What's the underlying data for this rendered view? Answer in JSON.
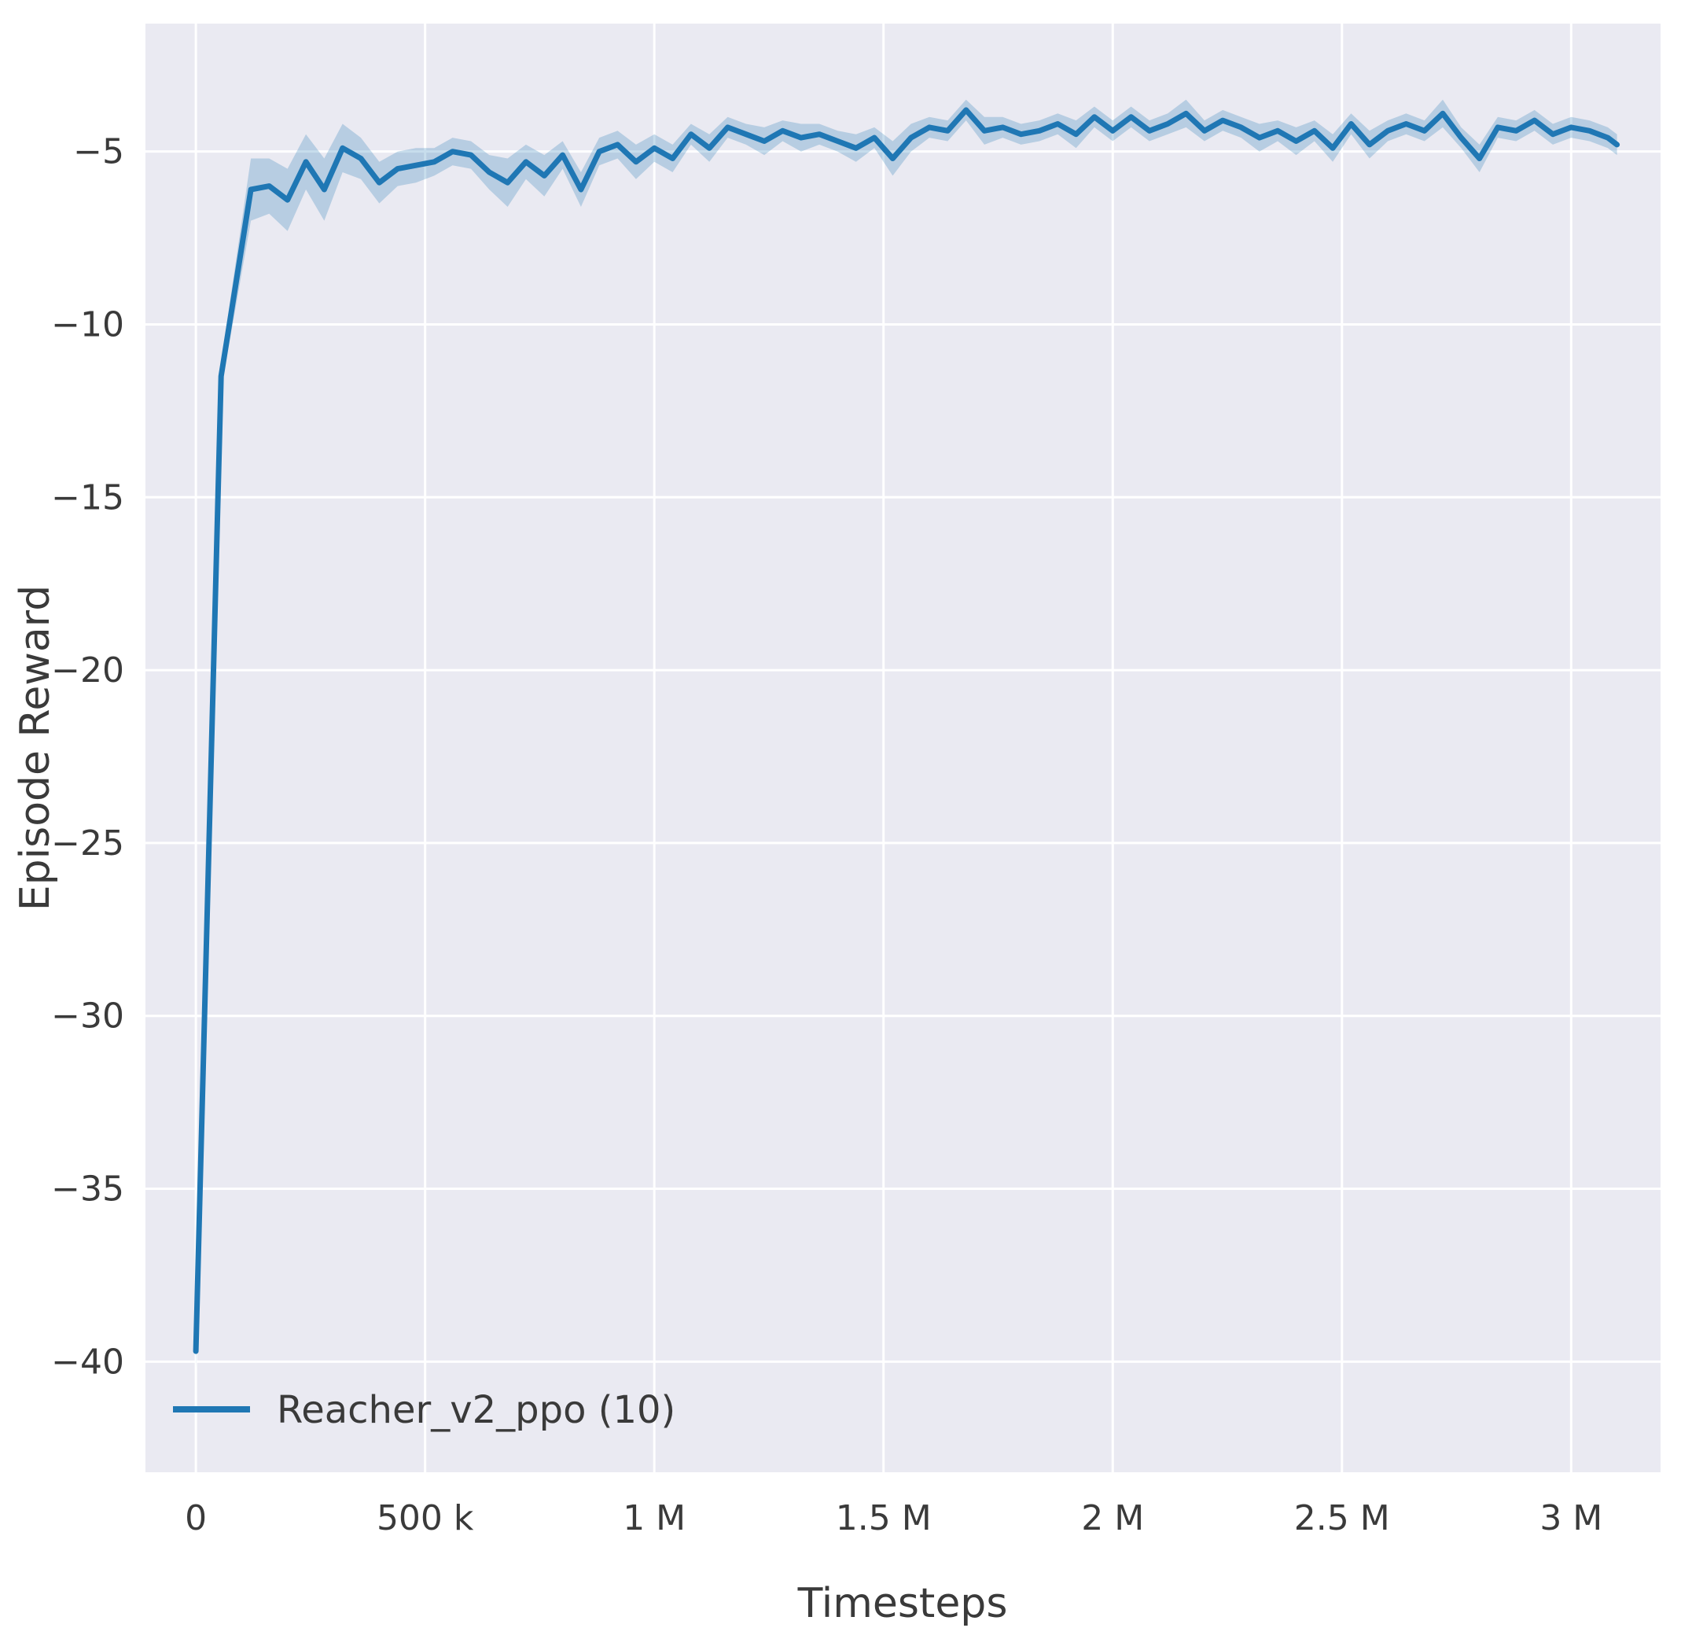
{
  "figure": {
    "background": "#ffffff",
    "plot_background": "#eaeaf2",
    "grid_color": "#ffffff",
    "text_color": "#3a3a3a",
    "line_color": "#1f77b4",
    "band_color": "#1f77b4",
    "band_opacity": 0.25
  },
  "chart_data": {
    "type": "line",
    "title": "",
    "xlabel": "Timesteps",
    "ylabel": "Episode Reward",
    "grid": true,
    "xlim": [
      -110000,
      3195000
    ],
    "ylim": [
      -43.2,
      -1.3
    ],
    "x_ticks": {
      "values": [
        0,
        500000,
        1000000,
        1500000,
        2000000,
        2500000,
        3000000
      ],
      "labels": [
        "0",
        "500 k",
        "1 M",
        "1.5 M",
        "2 M",
        "2.5 M",
        "3 M"
      ]
    },
    "y_ticks": {
      "values": [
        -5,
        -10,
        -15,
        -20,
        -25,
        -30,
        -35,
        -40
      ],
      "labels": [
        "−5",
        "−10",
        "−15",
        "−20",
        "−25",
        "−30",
        "−35",
        "−40"
      ]
    },
    "legend": {
      "position": "lower left",
      "entries": [
        {
          "label": "Reacher_v2_ppo (10)",
          "color": "#1f77b4"
        }
      ]
    },
    "series": [
      {
        "name": "Reacher_v2_ppo (10)",
        "x": [
          0,
          55000,
          120000,
          160000,
          200000,
          240000,
          280000,
          320000,
          360000,
          400000,
          440000,
          480000,
          520000,
          560000,
          600000,
          640000,
          680000,
          720000,
          760000,
          800000,
          840000,
          880000,
          920000,
          960000,
          1000000,
          1040000,
          1080000,
          1120000,
          1160000,
          1200000,
          1240000,
          1280000,
          1320000,
          1360000,
          1400000,
          1440000,
          1480000,
          1520000,
          1560000,
          1600000,
          1640000,
          1680000,
          1720000,
          1760000,
          1800000,
          1840000,
          1880000,
          1920000,
          1960000,
          2000000,
          2040000,
          2080000,
          2120000,
          2160000,
          2200000,
          2240000,
          2280000,
          2320000,
          2360000,
          2400000,
          2440000,
          2480000,
          2520000,
          2560000,
          2600000,
          2640000,
          2680000,
          2720000,
          2760000,
          2800000,
          2840000,
          2880000,
          2920000,
          2960000,
          3000000,
          3040000,
          3080000,
          3100000
        ],
        "y": [
          -39.7,
          -11.5,
          -6.1,
          -6.0,
          -6.4,
          -5.3,
          -6.1,
          -4.9,
          -5.2,
          -5.9,
          -5.5,
          -5.4,
          -5.3,
          -5.0,
          -5.1,
          -5.6,
          -5.9,
          -5.3,
          -5.7,
          -5.1,
          -6.1,
          -5.0,
          -4.8,
          -5.3,
          -4.9,
          -5.2,
          -4.5,
          -4.9,
          -4.3,
          -4.5,
          -4.7,
          -4.4,
          -4.6,
          -4.5,
          -4.7,
          -4.9,
          -4.6,
          -5.2,
          -4.6,
          -4.3,
          -4.4,
          -3.8,
          -4.4,
          -4.3,
          -4.5,
          -4.4,
          -4.2,
          -4.5,
          -4.0,
          -4.4,
          -4.0,
          -4.4,
          -4.2,
          -3.9,
          -4.4,
          -4.1,
          -4.3,
          -4.6,
          -4.4,
          -4.7,
          -4.4,
          -4.9,
          -4.2,
          -4.8,
          -4.4,
          -4.2,
          -4.4,
          -3.9,
          -4.6,
          -5.2,
          -4.3,
          -4.4,
          -4.1,
          -4.5,
          -4.3,
          -4.4,
          -4.6,
          -4.8
        ],
        "band_halfwidth": [
          0.5,
          0.4,
          0.9,
          0.8,
          0.9,
          0.8,
          0.9,
          0.7,
          0.6,
          0.6,
          0.5,
          0.5,
          0.4,
          0.4,
          0.4,
          0.5,
          0.7,
          0.5,
          0.6,
          0.4,
          0.5,
          0.4,
          0.4,
          0.5,
          0.4,
          0.4,
          0.3,
          0.4,
          0.3,
          0.3,
          0.4,
          0.3,
          0.4,
          0.3,
          0.3,
          0.4,
          0.3,
          0.5,
          0.4,
          0.3,
          0.3,
          0.3,
          0.4,
          0.3,
          0.3,
          0.3,
          0.3,
          0.4,
          0.3,
          0.3,
          0.3,
          0.3,
          0.3,
          0.4,
          0.3,
          0.3,
          0.3,
          0.4,
          0.3,
          0.4,
          0.3,
          0.4,
          0.3,
          0.4,
          0.3,
          0.3,
          0.3,
          0.4,
          0.3,
          0.4,
          0.3,
          0.3,
          0.3,
          0.3,
          0.3,
          0.3,
          0.3,
          0.3
        ]
      }
    ]
  }
}
